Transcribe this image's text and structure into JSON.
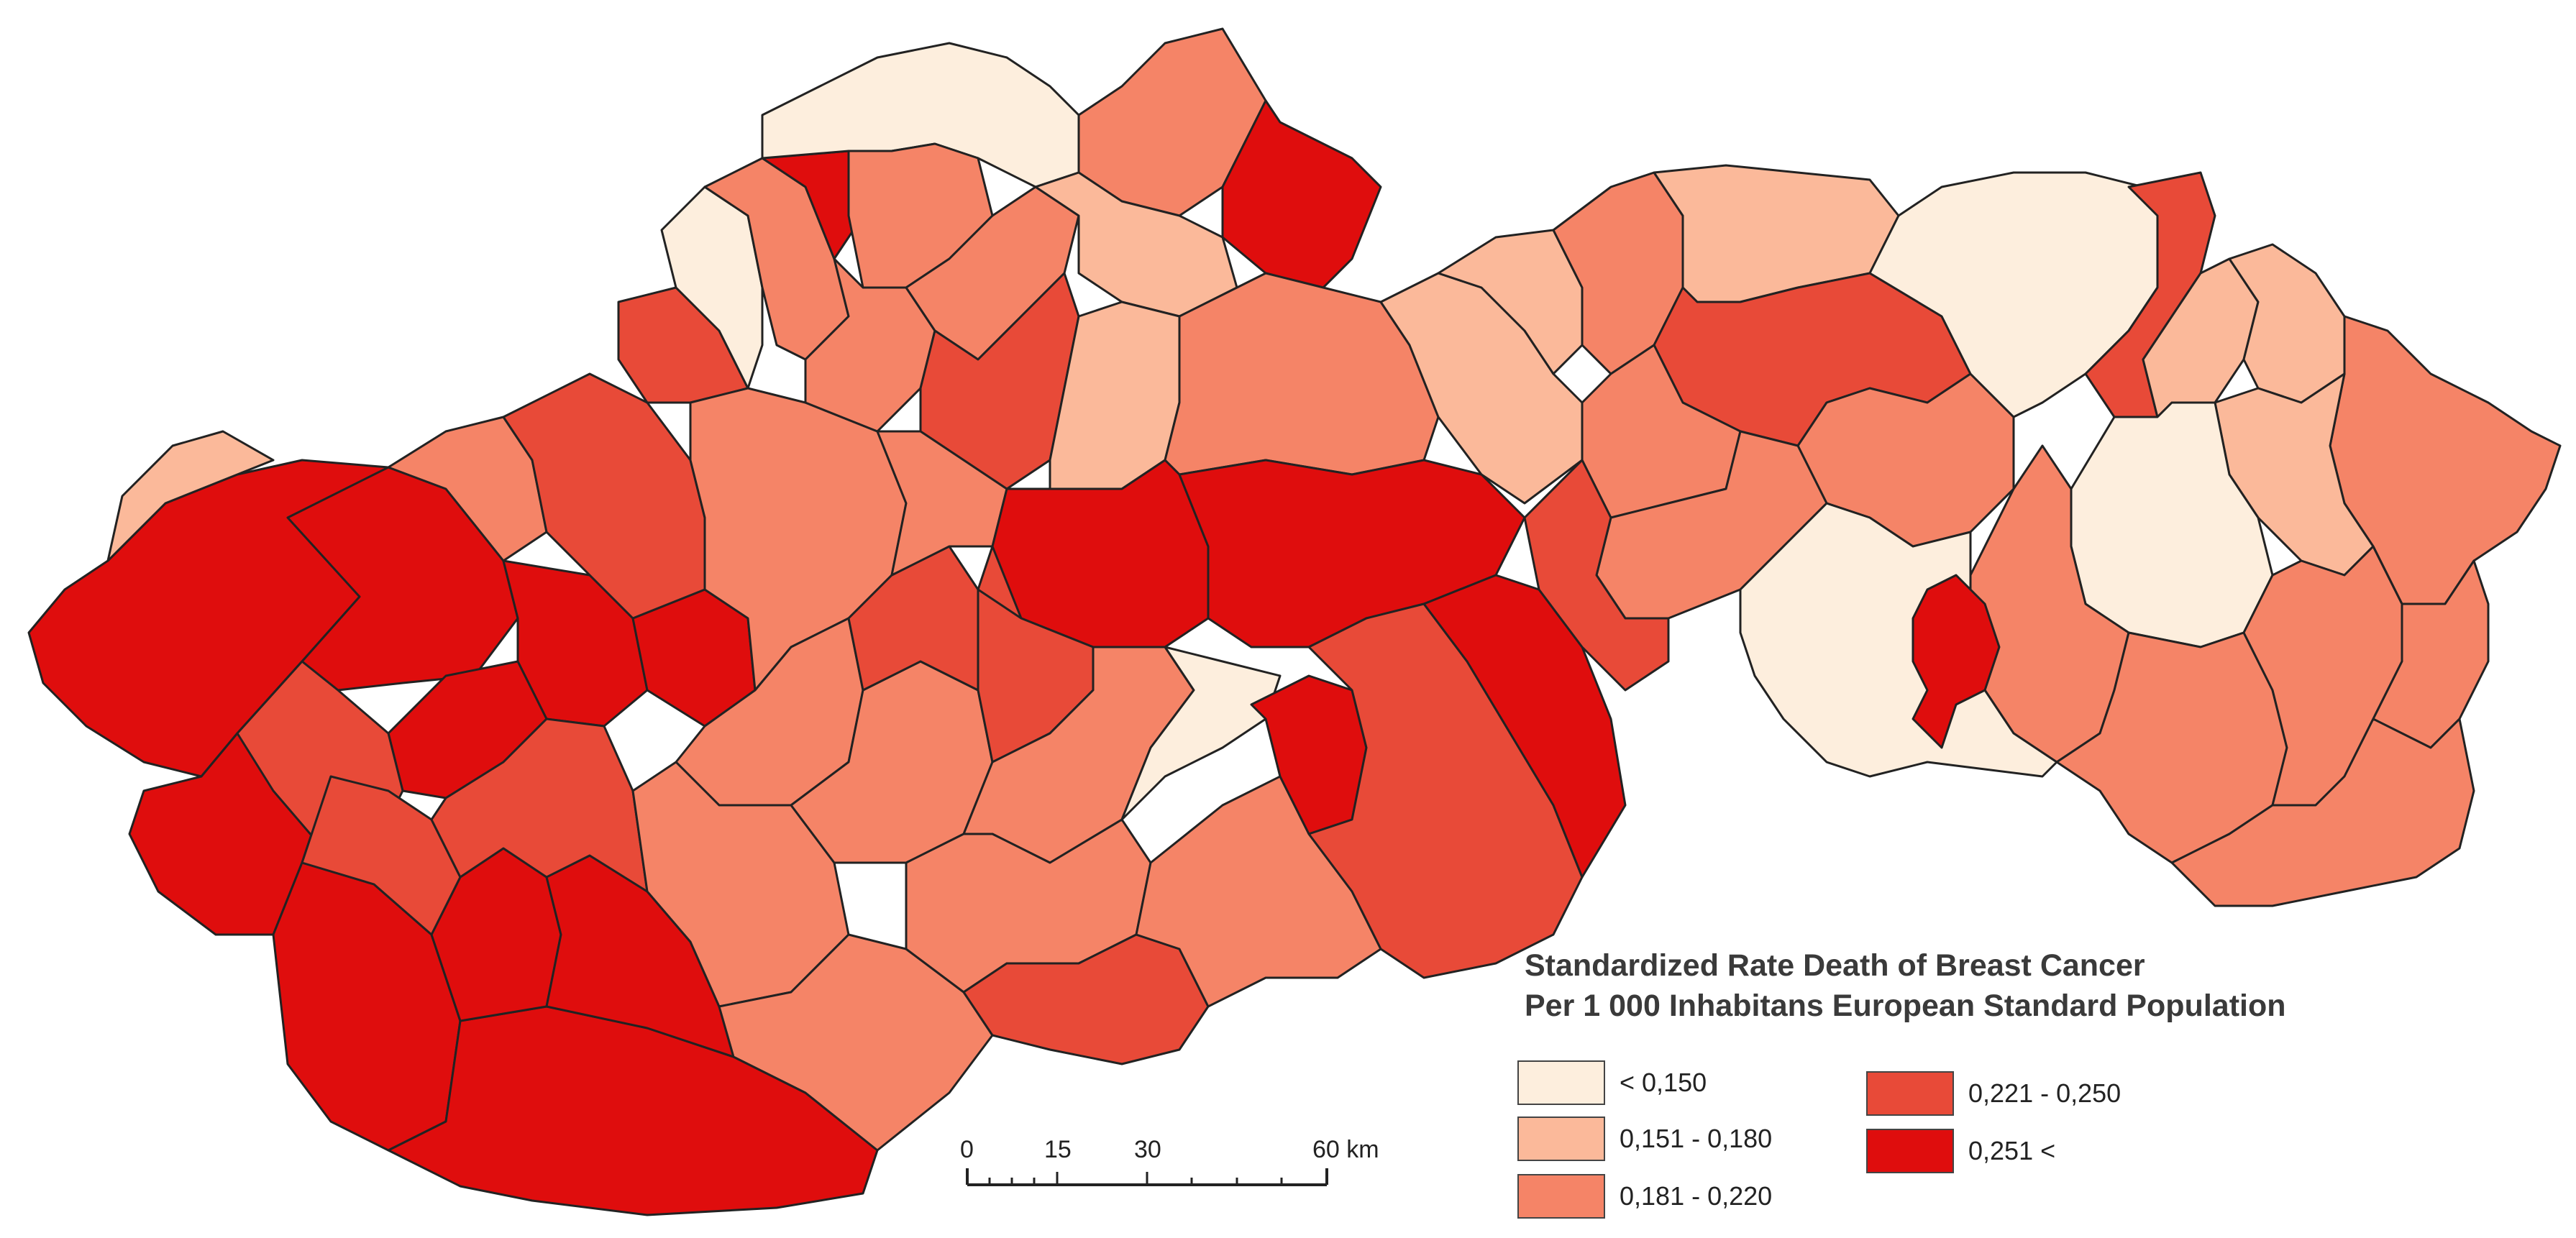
{
  "legend": {
    "title_line1": "Standardized Rate Death of Breast Cancer",
    "title_line2": "Per 1 000 Inhabitans European Standard Population",
    "classes": [
      {
        "label": "< 0,150",
        "color": "#fdeedd"
      },
      {
        "label": "0,151 - 0,180",
        "color": "#fbb99a"
      },
      {
        "label": "0,181 - 0,220",
        "color": "#f58467"
      },
      {
        "label": "0,221 - 0,250",
        "color": "#e84a38"
      },
      {
        "label": "0,251 <",
        "color": "#df0d0d"
      }
    ]
  },
  "scale_bar": {
    "ticks": [
      "0",
      "15",
      "30",
      "60 km"
    ]
  }
}
